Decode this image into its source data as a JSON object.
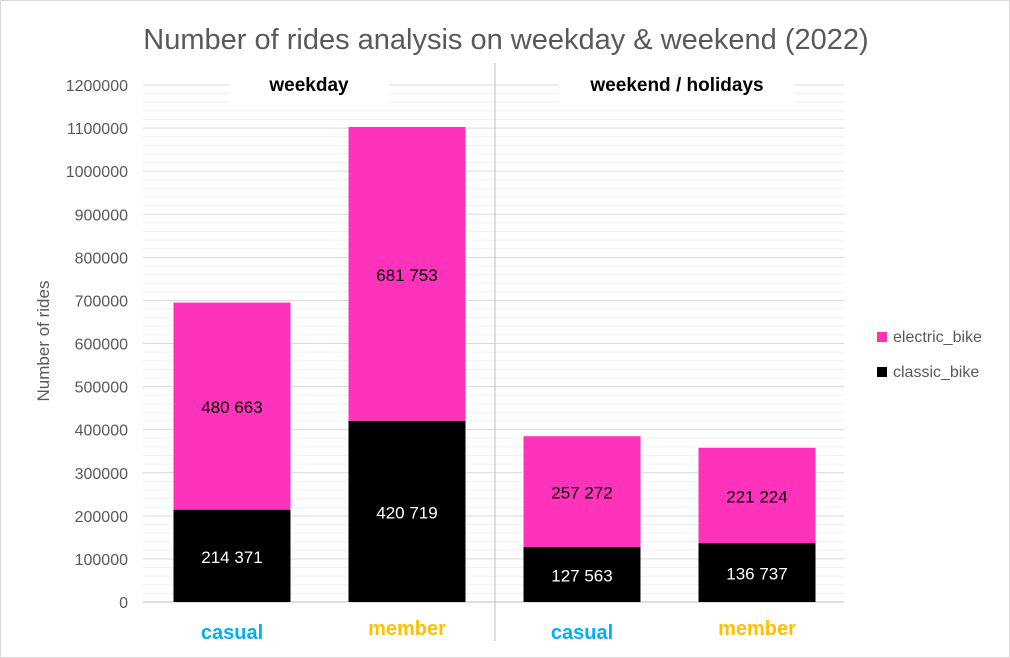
{
  "chart_data": {
    "type": "bar",
    "stacked": true,
    "title": "Number of rides analysis on weekday & weekend (2022)",
    "ylabel": "Number of rides",
    "ylim": [
      0,
      1200000
    ],
    "y_ticks": [
      "0",
      "100000",
      "200000",
      "300000",
      "400000",
      "500000",
      "600000",
      "700000",
      "800000",
      "900000",
      "1000000",
      "1100000",
      "1200000"
    ],
    "grid": true,
    "legend_position": "right",
    "groups": [
      {
        "label": "weekday",
        "categories": [
          "casual",
          "member"
        ]
      },
      {
        "label": "weekend / holidays",
        "categories": [
          "casual",
          "member"
        ]
      }
    ],
    "categories": [
      "casual",
      "member",
      "casual",
      "member"
    ],
    "category_colors": [
      "#00b0f0",
      "#ffc000",
      "#00b0f0",
      "#ffc000"
    ],
    "series": [
      {
        "name": "classic_bike",
        "color": "#000000",
        "values": [
          214371,
          420719,
          127563,
          136737
        ],
        "labels": [
          "214 371",
          "420 719",
          "127 563",
          "136 737"
        ],
        "label_color": "#ffffff"
      },
      {
        "name": "electric_bike",
        "color": "#ff33bb",
        "values": [
          480663,
          681753,
          257272,
          221224
        ],
        "labels": [
          "480 663",
          "681 753",
          "257 272",
          "221 224"
        ],
        "label_color": "#000000"
      }
    ],
    "legend": [
      "electric_bike",
      "classic_bike"
    ]
  }
}
